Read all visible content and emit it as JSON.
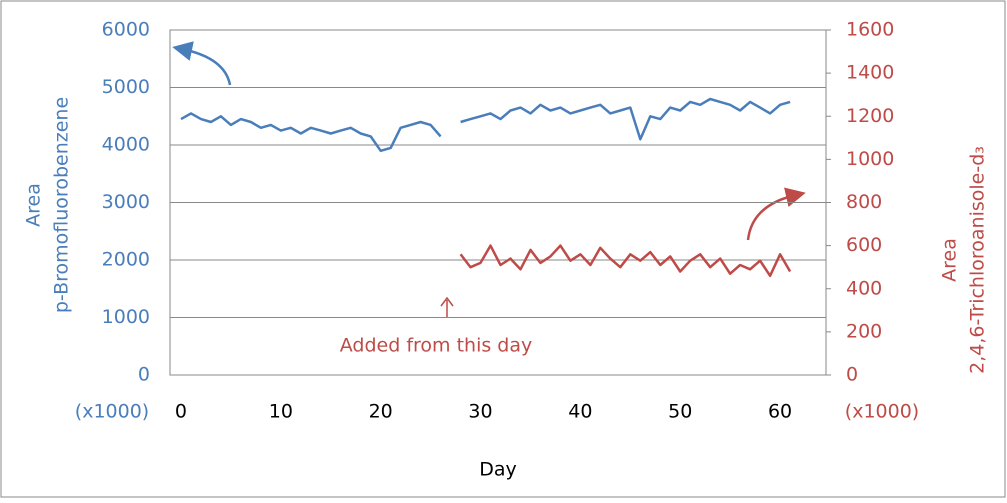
{
  "chart_data": {
    "type": "line",
    "y_label": [
      "Area",
      "p-Bromofluorobenzene"
    ],
    "y2_label": [
      "Area",
      "2,4,6-Trichloroanisole-d₃"
    ],
    "y_unit": "(x1000)",
    "y2_unit": "(x1000)",
    "x_label": "Day",
    "annotation": "Added  from this day",
    "x": [
      0,
      1,
      2,
      3,
      4,
      5,
      6,
      7,
      8,
      9,
      10,
      11,
      12,
      13,
      14,
      15,
      16,
      17,
      18,
      19,
      20,
      21,
      22,
      23,
      24,
      25,
      26,
      27,
      28,
      29,
      30,
      31,
      32,
      33,
      34,
      35,
      36,
      37,
      38,
      39,
      40,
      41,
      42,
      43,
      44,
      45,
      46,
      47,
      48,
      49,
      50,
      51,
      52,
      53,
      54,
      55,
      56,
      57,
      58,
      59,
      60,
      61
    ],
    "series": [
      {
        "name": "p-Bromofluorobenzene",
        "color": "#4a7ebb",
        "axis": "y",
        "values": [
          4450,
          4550,
          4450,
          4400,
          4500,
          4350,
          4450,
          4400,
          4300,
          4350,
          4250,
          4300,
          4200,
          4300,
          4250,
          4200,
          4250,
          4300,
          4200,
          4150,
          3900,
          3950,
          4300,
          4350,
          4400,
          4350,
          4150,
          null,
          4400,
          4450,
          4500,
          4550,
          4450,
          4600,
          4650,
          4550,
          4700,
          4600,
          4650,
          4550,
          4600,
          4650,
          4700,
          4550,
          4600,
          4650,
          4100,
          4500,
          4450,
          4650,
          4600,
          4750,
          4700,
          4800,
          4750,
          4700,
          4600,
          4750,
          4650,
          4550,
          4700,
          4750
        ]
      },
      {
        "name": "2,4,6-Trichloroanisole-d3",
        "color": "#be4b48",
        "axis": "y2",
        "values": [
          null,
          null,
          null,
          null,
          null,
          null,
          null,
          null,
          null,
          null,
          null,
          null,
          null,
          null,
          null,
          null,
          null,
          null,
          null,
          null,
          null,
          null,
          null,
          null,
          null,
          null,
          null,
          null,
          560,
          500,
          520,
          600,
          510,
          540,
          490,
          580,
          520,
          550,
          600,
          530,
          560,
          510,
          590,
          540,
          500,
          560,
          530,
          570,
          510,
          550,
          480,
          530,
          560,
          500,
          540,
          470,
          510,
          490,
          530,
          460,
          560,
          480
        ]
      }
    ],
    "xlim": [
      -1.1,
      64.6
    ],
    "xticks": [
      0,
      10,
      20,
      30,
      40,
      50,
      60
    ],
    "ylim": [
      0,
      6000
    ],
    "yticks": [
      0,
      1000,
      2000,
      3000,
      4000,
      5000,
      6000
    ],
    "y2lim": [
      0,
      1600
    ],
    "y2ticks": [
      0,
      200,
      400,
      600,
      800,
      1000,
      1200,
      1400,
      1600
    ],
    "grid": true
  }
}
